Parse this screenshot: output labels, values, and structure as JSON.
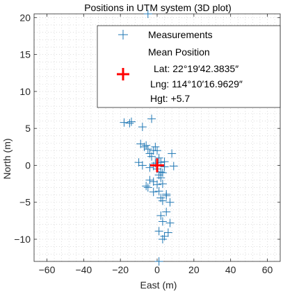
{
  "chart_data": {
    "type": "scatter",
    "title": "Positions in UTM system (3D plot)",
    "xlabel": "East (m)",
    "ylabel": "North (m)",
    "xlim": [
      -67,
      67
    ],
    "ylim": [
      -13,
      20.5
    ],
    "xticks": [
      -60,
      -40,
      -20,
      0,
      20,
      40,
      60
    ],
    "yticks": [
      -10,
      -5,
      0,
      5,
      10,
      15,
      20
    ],
    "grid": "minor-dotted",
    "legend_position": "top-right",
    "series": [
      {
        "name": "Measurements",
        "marker": "+",
        "color": "#1f77b4",
        "x": [
          -5,
          -3,
          -18,
          -15,
          -14,
          -8,
          -9,
          -7,
          -6,
          -5,
          -4,
          -3,
          -2,
          -1,
          0,
          1,
          2,
          -10,
          -8,
          -4,
          -2,
          -1,
          0,
          1,
          2,
          3,
          4,
          4,
          8,
          9,
          -6,
          -5,
          -4,
          -2,
          0,
          2,
          3,
          5,
          1,
          -2,
          2,
          3,
          5,
          7,
          2,
          5,
          3,
          7,
          1,
          4,
          6,
          3,
          1
        ],
        "y": [
          20.5,
          6.3,
          5.8,
          5.7,
          5.9,
          5.2,
          2.9,
          2.5,
          2.7,
          2.2,
          1.6,
          1.2,
          2.0,
          2.5,
          2.0,
          1.0,
          0.4,
          0.4,
          0.0,
          -0.3,
          -0.1,
          0.3,
          -0.5,
          -1.3,
          -0.9,
          -1.0,
          -0.2,
          0.5,
          1.6,
          -0.1,
          -2.8,
          -3.0,
          -2.0,
          -2.2,
          -2.6,
          -1.7,
          -2.5,
          -3.9,
          -3.5,
          -3.6,
          -4.4,
          -4.8,
          -4.1,
          -5.0,
          -6.8,
          -6.3,
          -7.6,
          -7.8,
          -8.9,
          -9.6,
          -9.1,
          -10.0,
          -13.0
        ]
      }
    ],
    "mean_marker": {
      "x": 0,
      "y": 0,
      "marker": "+",
      "color": "#ff0000"
    },
    "legend": {
      "entries": [
        "Measurements",
        "Mean Position"
      ],
      "mean_lat": "Lat: 22°19′42.3835″",
      "mean_lng": "Lng: 114°10′16.9629″",
      "mean_hgt": "Hgt: +5.7"
    }
  }
}
